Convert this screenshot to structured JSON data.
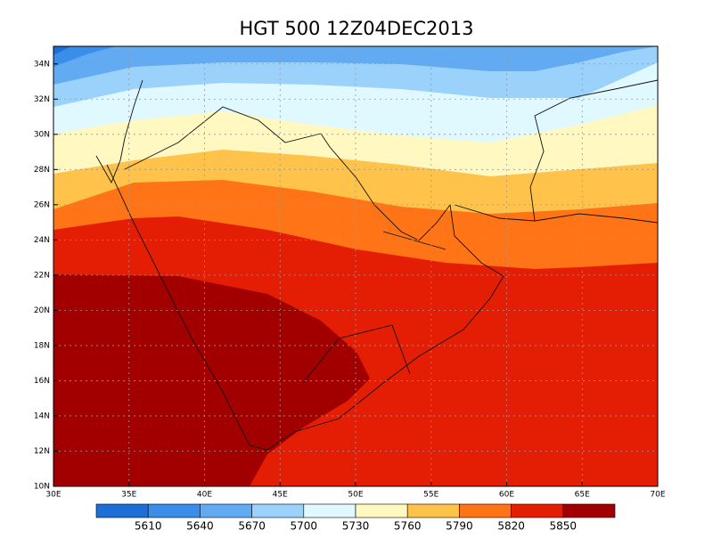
{
  "chart_data": {
    "type": "filled-contour-map",
    "title": "HGT 500 12Z04DEC2013",
    "xlim": [
      30,
      70
    ],
    "ylim": [
      10,
      35
    ],
    "xticks": [
      {
        "value": 30,
        "label": "30E"
      },
      {
        "value": 35,
        "label": "35E"
      },
      {
        "value": 40,
        "label": "40E"
      },
      {
        "value": 45,
        "label": "45E"
      },
      {
        "value": 50,
        "label": "50E"
      },
      {
        "value": 55,
        "label": "55E"
      },
      {
        "value": 60,
        "label": "60E"
      },
      {
        "value": 65,
        "label": "65E"
      },
      {
        "value": 70,
        "label": "70E"
      }
    ],
    "yticks": [
      {
        "value": 10,
        "label": "10N"
      },
      {
        "value": 12,
        "label": "12N"
      },
      {
        "value": 14,
        "label": "14N"
      },
      {
        "value": 16,
        "label": "16N"
      },
      {
        "value": 18,
        "label": "18N"
      },
      {
        "value": 20,
        "label": "20N"
      },
      {
        "value": 22,
        "label": "22N"
      },
      {
        "value": 24,
        "label": "24N"
      },
      {
        "value": 26,
        "label": "26N"
      },
      {
        "value": 28,
        "label": "28N"
      },
      {
        "value": 30,
        "label": "30N"
      },
      {
        "value": 32,
        "label": "32N"
      },
      {
        "value": 34,
        "label": "34N"
      }
    ],
    "grid": true,
    "levels": [
      5610,
      5640,
      5670,
      5700,
      5730,
      5760,
      5790,
      5820,
      5850
    ],
    "colors": [
      "#1e6ed8",
      "#3a8de8",
      "#62aaf2",
      "#9ad2fb",
      "#e0f8ff",
      "#fff8c0",
      "#ffc24a",
      "#ff7416",
      "#e41e04",
      "#a20000"
    ]
  }
}
